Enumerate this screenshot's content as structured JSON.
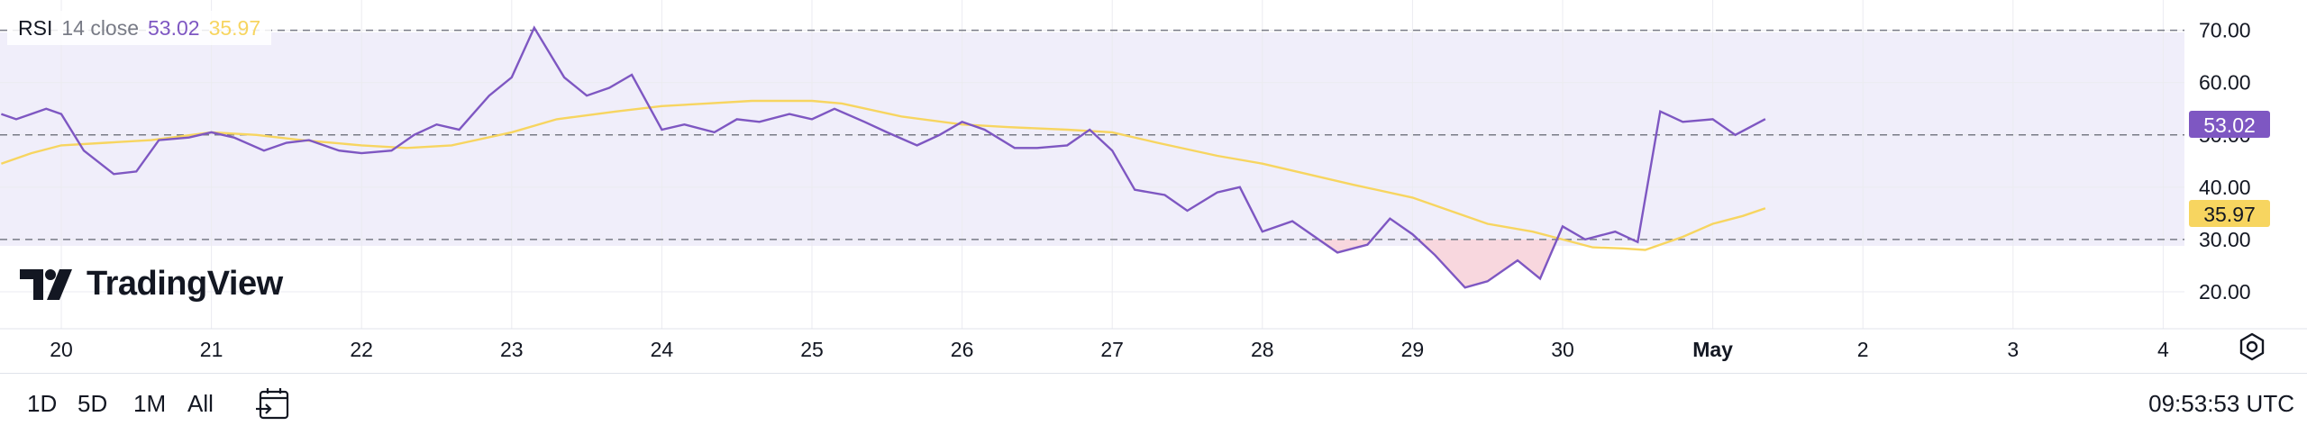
{
  "legend": {
    "indicator": "RSI",
    "params": "14 close",
    "rsi_value": "53.02",
    "ma_value": "35.97"
  },
  "logo": {
    "text": "TradingView"
  },
  "timeframes": [
    "1D",
    "5D",
    "1M",
    "All"
  ],
  "clock": "09:53:53 UTC",
  "icons": {
    "goto_date": "calendar-goto-icon",
    "settings": "settings-icon",
    "logo": "tradingview-logo-icon"
  },
  "colors": {
    "rsi": "#7e57c2",
    "ma": "#f7d560",
    "band": "#f0eefa",
    "oversold_fill": "#f8d7de"
  },
  "chart_data": {
    "type": "line",
    "ylim": [
      16.2,
      75.8
    ],
    "y_ticks": [
      "70.00",
      "60.00",
      "50.00",
      "40.00",
      "30.00",
      "20.00"
    ],
    "levels": {
      "upper": 70,
      "middle": 50,
      "lower": 30
    },
    "x_ticks": [
      "20",
      "21",
      "22",
      "23",
      "24",
      "25",
      "26",
      "27",
      "28",
      "29",
      "30",
      "May",
      "2",
      "3",
      "4"
    ],
    "grid": true,
    "series": [
      {
        "values": [
          [
            19.6,
            54
          ],
          [
            19.7,
            53
          ],
          [
            19.9,
            55
          ],
          [
            20.0,
            54
          ],
          [
            20.15,
            47
          ],
          [
            20.35,
            42.5
          ],
          [
            20.5,
            43
          ],
          [
            20.65,
            49
          ],
          [
            20.85,
            49.5
          ],
          [
            21.0,
            50.5
          ],
          [
            21.15,
            49.5
          ],
          [
            21.35,
            47
          ],
          [
            21.5,
            48.5
          ],
          [
            21.65,
            49
          ],
          [
            21.85,
            47
          ],
          [
            22.0,
            46.5
          ],
          [
            22.2,
            47
          ],
          [
            22.35,
            50
          ],
          [
            22.5,
            52
          ],
          [
            22.65,
            51
          ],
          [
            22.85,
            57.5
          ],
          [
            23.0,
            61
          ],
          [
            23.15,
            70.5
          ],
          [
            23.35,
            61
          ],
          [
            23.5,
            57.5
          ],
          [
            23.65,
            59
          ],
          [
            23.8,
            61.5
          ],
          [
            24.0,
            51
          ],
          [
            24.15,
            52
          ],
          [
            24.35,
            50.5
          ],
          [
            24.5,
            53
          ],
          [
            24.65,
            52.5
          ],
          [
            24.85,
            54
          ],
          [
            25.0,
            53
          ],
          [
            25.15,
            55
          ],
          [
            25.35,
            52.5
          ],
          [
            25.5,
            50.5
          ],
          [
            25.7,
            48
          ],
          [
            25.85,
            50
          ],
          [
            26.0,
            52.5
          ],
          [
            26.15,
            51
          ],
          [
            26.35,
            47.5
          ],
          [
            26.5,
            47.5
          ],
          [
            26.7,
            48
          ],
          [
            26.85,
            51
          ],
          [
            27.0,
            47
          ],
          [
            27.15,
            39.5
          ],
          [
            27.35,
            38.5
          ],
          [
            27.5,
            35.5
          ],
          [
            27.7,
            39
          ],
          [
            27.85,
            40
          ],
          [
            28.0,
            31.5
          ],
          [
            28.2,
            33.5
          ],
          [
            28.35,
            30.5
          ],
          [
            28.5,
            27.5
          ],
          [
            28.7,
            29
          ],
          [
            28.85,
            34
          ],
          [
            29.0,
            31
          ],
          [
            29.15,
            27
          ],
          [
            29.35,
            20.8
          ],
          [
            29.5,
            22
          ],
          [
            29.7,
            26
          ],
          [
            29.85,
            22.5
          ],
          [
            30.0,
            32.5
          ],
          [
            30.15,
            30
          ],
          [
            30.35,
            31.5
          ],
          [
            30.5,
            29.5
          ],
          [
            30.65,
            54.5
          ],
          [
            30.8,
            52.5
          ],
          [
            31.0,
            53
          ],
          [
            31.15,
            50
          ],
          [
            31.35,
            53.02
          ]
        ]
      },
      {
        "values": [
          [
            19.6,
            44.5
          ],
          [
            19.8,
            46.5
          ],
          [
            20.0,
            48
          ],
          [
            20.3,
            48.5
          ],
          [
            20.6,
            49
          ],
          [
            21.0,
            50.5
          ],
          [
            21.3,
            50
          ],
          [
            21.6,
            49
          ],
          [
            22.0,
            48
          ],
          [
            22.3,
            47.5
          ],
          [
            22.6,
            48
          ],
          [
            23.0,
            50.5
          ],
          [
            23.3,
            53
          ],
          [
            23.7,
            54.5
          ],
          [
            24.0,
            55.5
          ],
          [
            24.3,
            56
          ],
          [
            24.6,
            56.5
          ],
          [
            25.0,
            56.5
          ],
          [
            25.2,
            56
          ],
          [
            25.6,
            53.5
          ],
          [
            26.0,
            52
          ],
          [
            26.3,
            51.5
          ],
          [
            26.7,
            51
          ],
          [
            27.0,
            50.5
          ],
          [
            27.3,
            48.5
          ],
          [
            27.7,
            46
          ],
          [
            28.0,
            44.5
          ],
          [
            28.3,
            42.5
          ],
          [
            28.6,
            40.5
          ],
          [
            29.0,
            38
          ],
          [
            29.3,
            35
          ],
          [
            29.5,
            33
          ],
          [
            29.8,
            31.5
          ],
          [
            30.0,
            30
          ],
          [
            30.2,
            28.5
          ],
          [
            30.4,
            28.3
          ],
          [
            30.55,
            28
          ],
          [
            30.8,
            30.5
          ],
          [
            31.0,
            33
          ],
          [
            31.2,
            34.5
          ],
          [
            31.35,
            35.97
          ]
        ]
      }
    ]
  }
}
